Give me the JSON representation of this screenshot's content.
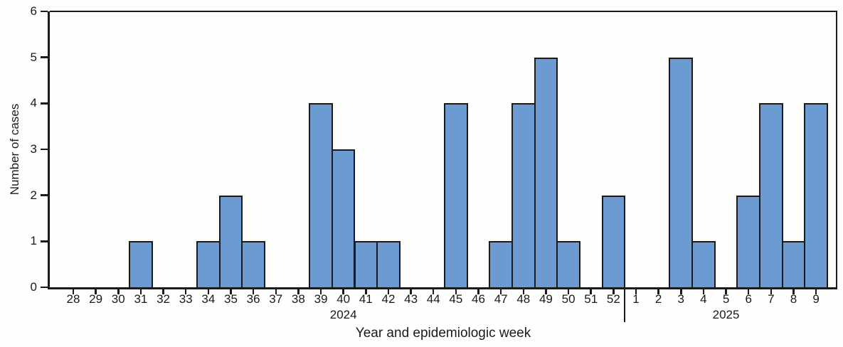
{
  "chart_data": {
    "type": "bar",
    "title": "",
    "xlabel": "Year and epidemiologic week",
    "ylabel": "Number of cases",
    "ylim": [
      0,
      6
    ],
    "yticks": [
      "0",
      "1",
      "2",
      "3",
      "4",
      "5",
      "6"
    ],
    "grid": "off",
    "legend": "none",
    "bar_color": "#6C9BD2",
    "bar_border_color": "#1a1a1a",
    "axis_color": "#1a1a1a",
    "groups": [
      {
        "year_label": "2024",
        "year_label_under_week": "40",
        "weeks": [
          "28",
          "29",
          "30",
          "31",
          "32",
          "33",
          "34",
          "35",
          "36",
          "37",
          "38",
          "39",
          "40",
          "41",
          "42",
          "43",
          "44",
          "45",
          "46",
          "47",
          "48",
          "49",
          "50",
          "51",
          "52"
        ],
        "values": [
          0,
          0,
          0,
          1,
          0,
          0,
          1,
          2,
          1,
          0,
          0,
          4,
          3,
          1,
          1,
          0,
          0,
          4,
          0,
          1,
          4,
          5,
          1,
          0,
          2
        ]
      },
      {
        "year_label": "2025",
        "year_label_under_week": "5",
        "weeks": [
          "1",
          "2",
          "3",
          "4",
          "5",
          "6",
          "7",
          "8",
          "9"
        ],
        "values": [
          0,
          0,
          5,
          1,
          0,
          2,
          4,
          1,
          4
        ]
      }
    ]
  }
}
